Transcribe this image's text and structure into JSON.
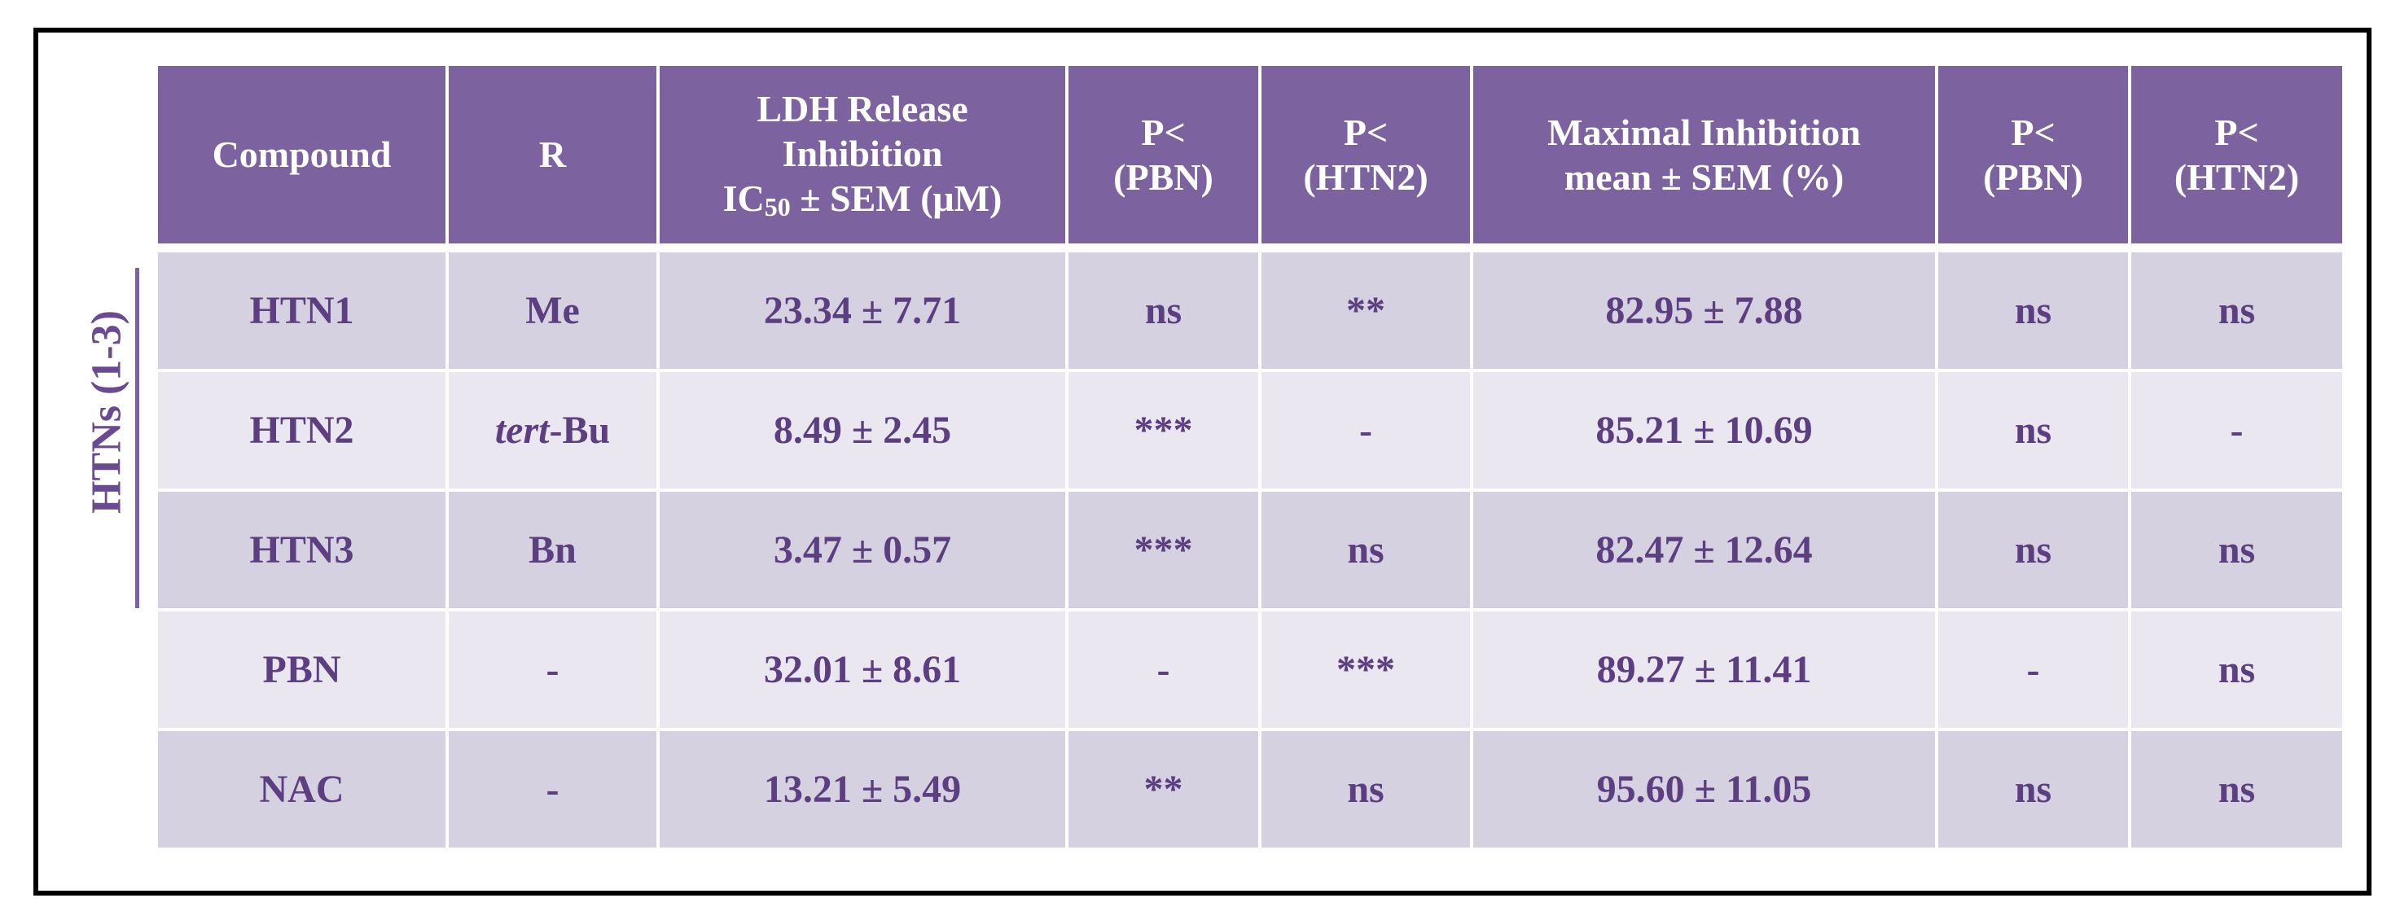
{
  "side_label": "HTNs (1-3)",
  "table": {
    "header": [
      [
        "Compound"
      ],
      [
        "R"
      ],
      [
        "LDH Release",
        "Inhibition",
        {
          "text": "IC",
          "sub": "50",
          "rest": " ± SEM (μM)"
        }
      ],
      [
        "P<",
        "(PBN)"
      ],
      [
        "P<",
        "(HTN2)"
      ],
      [
        "Maximal Inhibition",
        "mean ± SEM (%)"
      ],
      [
        "P<",
        "(PBN)"
      ],
      [
        "P<",
        "(HTN2)"
      ]
    ],
    "rows": [
      [
        "HTN1",
        "Me",
        "23.34 ± 7.71",
        "ns",
        "**",
        "82.95 ± 7.88",
        "ns",
        "ns"
      ],
      [
        "HTN2",
        {
          "italic": "tert",
          "rest": "-Bu"
        },
        "8.49 ± 2.45",
        "***",
        "-",
        "85.21 ± 10.69",
        "ns",
        "-"
      ],
      [
        "HTN3",
        "Bn",
        "3.47 ± 0.57",
        "***",
        "ns",
        "82.47 ± 12.64",
        "ns",
        "ns"
      ],
      [
        "PBN",
        "-",
        "32.01 ± 8.61",
        "-",
        "***",
        "89.27 ± 11.41",
        "-",
        "ns"
      ],
      [
        "NAC",
        "-",
        "13.21 ± 5.49",
        "**",
        "ns",
        "95.60 ± 11.05",
        "ns",
        "ns"
      ]
    ]
  }
}
